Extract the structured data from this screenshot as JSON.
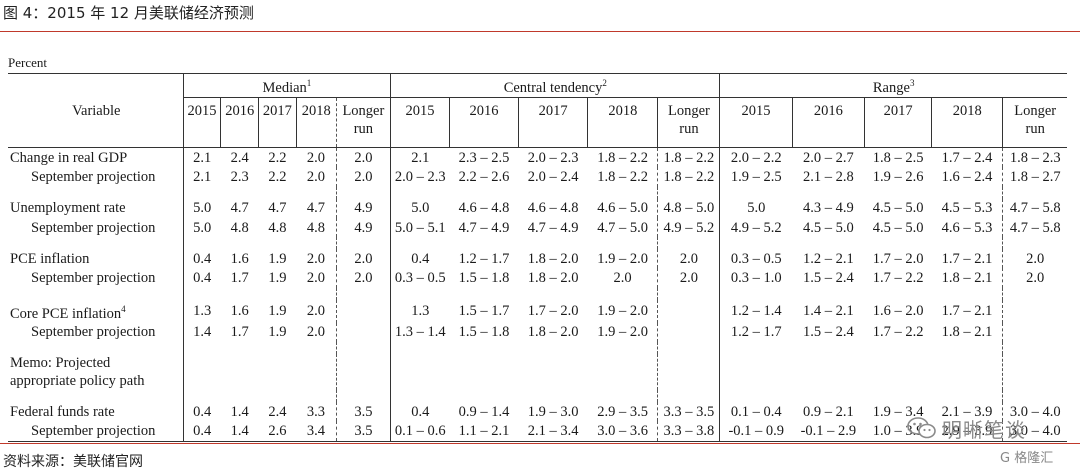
{
  "figure_title": "图 4：2015 年 12 月美联储经济预测",
  "unit_label": "Percent",
  "header": {
    "variable": "Variable",
    "groups": [
      {
        "name": "Median",
        "note": "1"
      },
      {
        "name": "Central tendency",
        "note": "2"
      },
      {
        "name": "Range",
        "note": "3"
      }
    ],
    "years": [
      "2015",
      "2016",
      "2017",
      "2018"
    ],
    "longer_run_line1": "Longer",
    "longer_run_line2": "run"
  },
  "rows": [
    {
      "type": "main",
      "label": "Change in real GDP",
      "median": [
        "2.1",
        "2.4",
        "2.2",
        "2.0",
        "2.0"
      ],
      "central": [
        "2.1",
        "2.3 – 2.5",
        "2.0 – 2.3",
        "1.8 – 2.2",
        "1.8 – 2.2"
      ],
      "range": [
        "2.0 – 2.2",
        "2.0 – 2.7",
        "1.8 – 2.5",
        "1.7 – 2.4",
        "1.8 – 2.3"
      ]
    },
    {
      "type": "sub",
      "label": "September projection",
      "median": [
        "2.1",
        "2.3",
        "2.2",
        "2.0",
        "2.0"
      ],
      "central": [
        "2.0 – 2.3",
        "2.2 – 2.6",
        "2.0 – 2.4",
        "1.8 – 2.2",
        "1.8 – 2.2"
      ],
      "range": [
        "1.9 – 2.5",
        "2.1 – 2.8",
        "1.9 – 2.6",
        "1.6 – 2.4",
        "1.8 – 2.7"
      ]
    },
    {
      "type": "main",
      "label": "Unemployment rate",
      "median": [
        "5.0",
        "4.7",
        "4.7",
        "4.7",
        "4.9"
      ],
      "central": [
        "5.0",
        "4.6 – 4.8",
        "4.6 – 4.8",
        "4.6 – 5.0",
        "4.8 – 5.0"
      ],
      "range": [
        "5.0",
        "4.3 – 4.9",
        "4.5 – 5.0",
        "4.5 – 5.3",
        "4.7 – 5.8"
      ]
    },
    {
      "type": "sub",
      "label": "September projection",
      "median": [
        "5.0",
        "4.8",
        "4.8",
        "4.8",
        "4.9"
      ],
      "central": [
        "5.0 – 5.1",
        "4.7 – 4.9",
        "4.7 – 4.9",
        "4.7 – 5.0",
        "4.9 – 5.2"
      ],
      "range": [
        "4.9 – 5.2",
        "4.5 – 5.0",
        "4.5 – 5.0",
        "4.6 – 5.3",
        "4.7 – 5.8"
      ]
    },
    {
      "type": "main",
      "label": "PCE inflation",
      "median": [
        "0.4",
        "1.6",
        "1.9",
        "2.0",
        "2.0"
      ],
      "central": [
        "0.4",
        "1.2 – 1.7",
        "1.8 – 2.0",
        "1.9 – 2.0",
        "2.0"
      ],
      "range": [
        "0.3 – 0.5",
        "1.2 – 2.1",
        "1.7 – 2.0",
        "1.7 – 2.1",
        "2.0"
      ]
    },
    {
      "type": "sub",
      "label": "September projection",
      "median": [
        "0.4",
        "1.7",
        "1.9",
        "2.0",
        "2.0"
      ],
      "central": [
        "0.3 – 0.5",
        "1.5 – 1.8",
        "1.8 – 2.0",
        "2.0",
        "2.0"
      ],
      "range": [
        "0.3 – 1.0",
        "1.5 – 2.4",
        "1.7 – 2.2",
        "1.8 – 2.1",
        "2.0"
      ]
    },
    {
      "type": "main",
      "label": "Core PCE inflation",
      "note": "4",
      "median": [
        "1.3",
        "1.6",
        "1.9",
        "2.0",
        ""
      ],
      "central": [
        "1.3",
        "1.5 – 1.7",
        "1.7 – 2.0",
        "1.9 – 2.0",
        ""
      ],
      "range": [
        "1.2 – 1.4",
        "1.4 – 2.1",
        "1.6 – 2.0",
        "1.7 – 2.1",
        ""
      ]
    },
    {
      "type": "sub",
      "label": "September projection",
      "median": [
        "1.4",
        "1.7",
        "1.9",
        "2.0",
        ""
      ],
      "central": [
        "1.3 – 1.4",
        "1.5 – 1.8",
        "1.8 – 2.0",
        "1.9 – 2.0",
        ""
      ],
      "range": [
        "1.2 – 1.7",
        "1.5 – 2.4",
        "1.7 – 2.2",
        "1.8 – 2.1",
        ""
      ]
    },
    {
      "type": "memo",
      "label_line1": "Memo: Projected",
      "label_line2": "appropriate policy path"
    },
    {
      "type": "main",
      "label": "Federal funds rate",
      "median": [
        "0.4",
        "1.4",
        "2.4",
        "3.3",
        "3.5"
      ],
      "central": [
        "0.4",
        "0.9 – 1.4",
        "1.9 – 3.0",
        "2.9 – 3.5",
        "3.3 – 3.5"
      ],
      "range": [
        "0.1 – 0.4",
        "0.9 – 2.1",
        "1.9 – 3.4",
        "2.1 – 3.9",
        "3.0 – 4.0"
      ]
    },
    {
      "type": "sub",
      "label": "September projection",
      "median": [
        "0.4",
        "1.4",
        "2.6",
        "3.4",
        "3.5"
      ],
      "central": [
        "0.1 – 0.6",
        "1.1 – 2.1",
        "2.1 – 3.4",
        "3.0 – 3.6",
        "3.3 – 3.8"
      ],
      "range": [
        "-0.1 – 0.9",
        "-0.1 – 2.9",
        "1.0 – 3.9",
        "2.9 – 3.9",
        "3.0 – 4.0"
      ]
    }
  ],
  "source": "资料来源：美联储官网",
  "watermark": {
    "icon": "wechat-icon",
    "text": "明晰笔谈",
    "sub": "G 格隆汇"
  }
}
